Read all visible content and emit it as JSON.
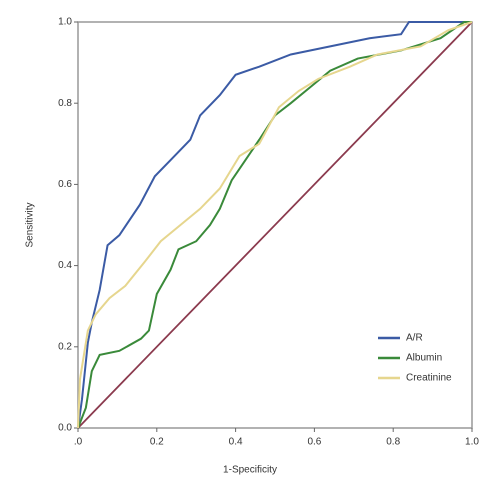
{
  "chart_data": {
    "type": "line",
    "x_label": "1-Specificity",
    "y_label": "Sensitivity",
    "xlim": [
      0,
      1
    ],
    "ylim": [
      0,
      1
    ],
    "xticks": [
      {
        "value": 0,
        "label": ".0"
      },
      0.2,
      0.4,
      0.6,
      0.8,
      {
        "value": 1,
        "label": "1.0"
      }
    ],
    "yticks": [
      {
        "value": 0,
        "label": "0.0"
      },
      0.2,
      0.4,
      0.6,
      0.8,
      {
        "value": 1,
        "label": "1.0"
      }
    ],
    "legend": "lower right",
    "series": [
      {
        "name": "A/R",
        "color": "#3b5ba5",
        "x": [
          0,
          0.01,
          0.025,
          0.035,
          0.055,
          0.075,
          0.105,
          0.157,
          0.195,
          0.235,
          0.285,
          0.31,
          0.36,
          0.4,
          0.46,
          0.54,
          0.64,
          0.74,
          0.82,
          0.84,
          1
        ],
        "values": [
          0,
          0.07,
          0.21,
          0.26,
          0.34,
          0.45,
          0.475,
          0.55,
          0.62,
          0.66,
          0.71,
          0.77,
          0.82,
          0.87,
          0.89,
          0.92,
          0.94,
          0.96,
          0.97,
          1,
          1
        ]
      },
      {
        "name": "Albumin",
        "color": "#3a8a3a",
        "x": [
          0,
          0.02,
          0.035,
          0.055,
          0.105,
          0.16,
          0.18,
          0.2,
          0.235,
          0.255,
          0.3,
          0.335,
          0.36,
          0.39,
          0.425,
          0.46,
          0.5,
          0.54,
          0.59,
          0.64,
          0.71,
          0.82,
          0.92,
          0.98,
          1
        ],
        "values": [
          0,
          0.05,
          0.14,
          0.18,
          0.19,
          0.22,
          0.24,
          0.33,
          0.39,
          0.44,
          0.46,
          0.5,
          0.54,
          0.61,
          0.66,
          0.71,
          0.77,
          0.8,
          0.84,
          0.88,
          0.91,
          0.93,
          0.96,
          1,
          1
        ]
      },
      {
        "name": "Creatinine",
        "color": "#e6d68e",
        "x": [
          0,
          0.005,
          0.025,
          0.045,
          0.08,
          0.12,
          0.17,
          0.21,
          0.26,
          0.31,
          0.36,
          0.41,
          0.46,
          0.51,
          0.56,
          0.61,
          0.69,
          0.76,
          0.87,
          0.94,
          1
        ],
        "values": [
          0,
          0.12,
          0.24,
          0.28,
          0.32,
          0.35,
          0.41,
          0.46,
          0.5,
          0.54,
          0.59,
          0.67,
          0.7,
          0.79,
          0.83,
          0.86,
          0.89,
          0.92,
          0.94,
          0.98,
          1
        ]
      }
    ],
    "reference_line": {
      "color": "#8b3a4e",
      "x": [
        0,
        1
      ],
      "values": [
        0,
        1
      ]
    }
  }
}
